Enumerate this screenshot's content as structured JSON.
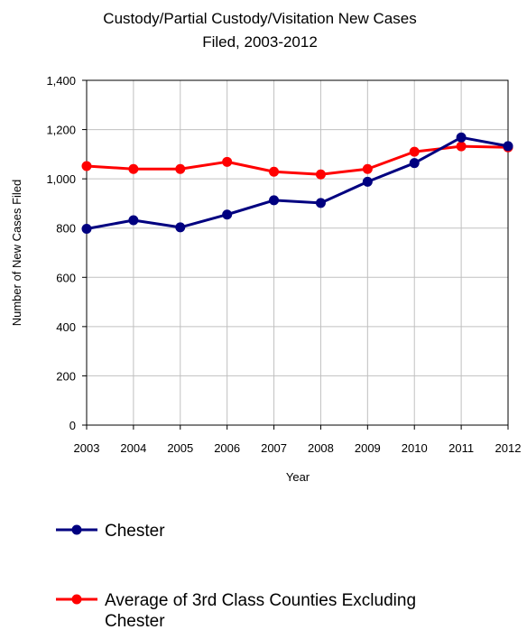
{
  "chart_data": {
    "type": "line",
    "title": [
      "Custody/Partial Custody/Visitation New Cases",
      "Filed, 2003-2012"
    ],
    "xlabel": "Year",
    "ylabel": "Number of New Cases Filed",
    "categories": [
      "2003",
      "2004",
      "2005",
      "2006",
      "2007",
      "2008",
      "2009",
      "2010",
      "2011",
      "2012"
    ],
    "y_ticks": [
      "0",
      "200",
      "400",
      "600",
      "800",
      "1,000",
      "1,200",
      "1,400"
    ],
    "ylim": [
      0,
      1400
    ],
    "grid": true,
    "legend_position": "bottom",
    "series": [
      {
        "name": "Chester",
        "color": "#000080",
        "values": [
          797,
          832,
          803,
          855,
          913,
          902,
          988,
          1064,
          1168,
          1133
        ]
      },
      {
        "name_lines": [
          "Average of 3rd Class Counties Excluding",
          "Chester"
        ],
        "color": "#ff0000",
        "values": [
          1052,
          1040,
          1040,
          1069,
          1029,
          1018,
          1040,
          1110,
          1132,
          1128
        ]
      }
    ]
  }
}
